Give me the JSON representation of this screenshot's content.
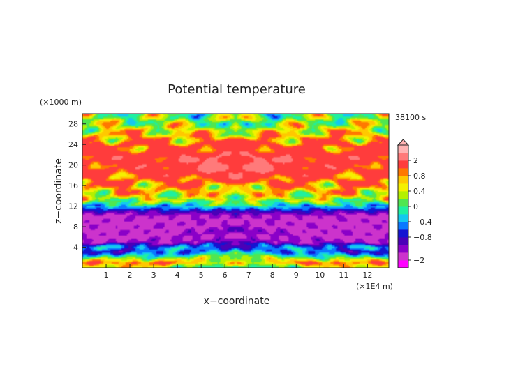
{
  "chart_data": {
    "type": "heatmap",
    "title": "Potential temperature",
    "xlabel": "x−coordinate",
    "ylabel": "z−coordinate",
    "x_unit_label": "(×1E4 m)",
    "y_unit_label": "(×1000 m)",
    "time_label": "38100 s",
    "xlim": [
      0,
      12.9
    ],
    "ylim": [
      0,
      30
    ],
    "x_ticks": [
      1,
      2,
      3,
      4,
      5,
      6,
      7,
      8,
      9,
      10,
      11,
      12
    ],
    "x_tick_labels": [
      "1",
      "2",
      "3",
      "4",
      "5",
      "6",
      "7",
      "8",
      "9",
      "10",
      "11",
      "12"
    ],
    "y_ticks": [
      4,
      8,
      12,
      16,
      20,
      24,
      28
    ],
    "y_tick_labels": [
      "4",
      "8",
      "12",
      "16",
      "20",
      "24",
      "28"
    ],
    "colorbar": {
      "levels": [
        -3.0,
        -2.0,
        -1.2,
        -1.0,
        -0.8,
        -0.6,
        -0.4,
        -0.2,
        0.0,
        0.2,
        0.4,
        0.6,
        0.8,
        1.0,
        2.0,
        3.0
      ],
      "colors": [
        "#ff00ff",
        "#cc33cc",
        "#8a00c8",
        "#4a00b8",
        "#1414d2",
        "#0a78ff",
        "#14c8f0",
        "#1ef0a0",
        "#50e650",
        "#b4f000",
        "#f5f000",
        "#ffc800",
        "#ff7800",
        "#ff3c3c",
        "#ff7a7a",
        "#ffb4b4"
      ],
      "tick_values": [
        2,
        0.8,
        0.4,
        0,
        -0.4,
        -0.8,
        -2
      ],
      "tick_labels": [
        "2",
        "0.8",
        "0.4",
        "0",
        "−0.4",
        "−0.8",
        "−2"
      ],
      "extend": "max"
    },
    "field_profile": {
      "z": [
        0.0,
        1.0,
        2.0,
        3.0,
        4.0,
        5.0,
        6.0,
        7.0,
        8.0,
        9.0,
        10.0,
        11.0,
        12.0,
        13.0,
        14.0,
        15.0,
        16.0,
        17.0,
        18.0,
        19.0,
        20.0,
        21.0,
        22.0,
        23.0,
        24.0,
        25.0,
        26.0,
        27.0,
        28.0,
        29.0,
        30.0
      ],
      "value_at_domain_edge": [
        0.5,
        1.0,
        0.0,
        -0.7,
        -0.4,
        -1.2,
        -1.3,
        -1.3,
        -1.3,
        -1.3,
        -1.3,
        -0.9,
        -0.3,
        0.2,
        0.5,
        0.7,
        0.8,
        0.9,
        1.1,
        1.2,
        1.3,
        1.4,
        1.3,
        1.1,
        1.0,
        0.8,
        0.7,
        0.5,
        0.3,
        0.2,
        0.2
      ],
      "value_at_center": [
        -0.4,
        0.5,
        0.3,
        -0.2,
        -0.6,
        -1.0,
        -1.2,
        -1.1,
        -1.2,
        -1.3,
        -1.2,
        -0.8,
        -0.2,
        0.3,
        0.4,
        0.6,
        0.9,
        1.2,
        1.6,
        2.1,
        2.3,
        2.2,
        1.9,
        1.4,
        1.0,
        0.8,
        0.6,
        0.4,
        0.2,
        0.1,
        0.0
      ]
    }
  }
}
